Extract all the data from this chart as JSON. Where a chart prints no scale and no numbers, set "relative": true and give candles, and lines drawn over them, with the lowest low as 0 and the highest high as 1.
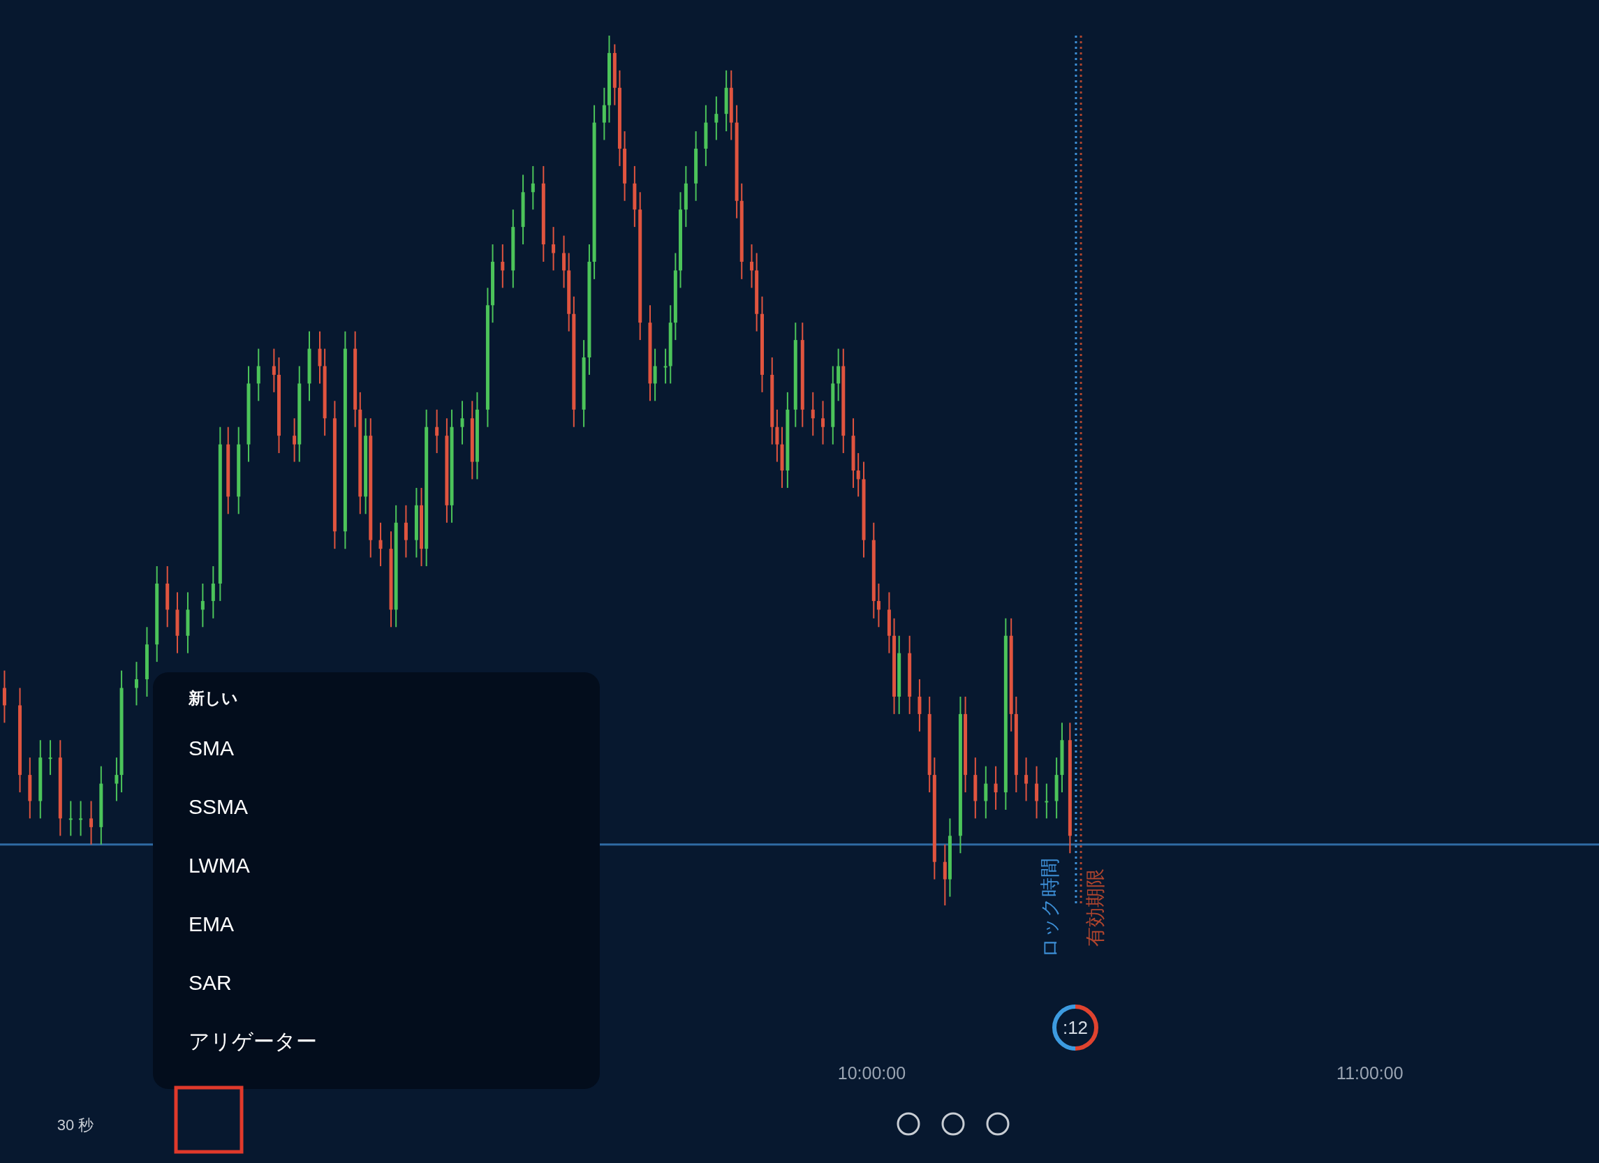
{
  "chart_data": {
    "type": "candlestick",
    "relative": true,
    "x": [
      8.259,
      8.29,
      8.31,
      8.331,
      8.351,
      8.371,
      8.392,
      8.412,
      8.433,
      8.453,
      8.484,
      8.494,
      8.524,
      8.545,
      8.565,
      8.586,
      8.606,
      8.627,
      8.657,
      8.678,
      8.692,
      8.708,
      8.729,
      8.749,
      8.769,
      8.8,
      8.81,
      8.841,
      8.851,
      8.871,
      8.892,
      8.902,
      8.922,
      8.943,
      8.963,
      8.973,
      8.984,
      8.994,
      9.014,
      9.035,
      9.045,
      9.065,
      9.086,
      9.096,
      9.106,
      9.127,
      9.147,
      9.157,
      9.178,
      9.198,
      9.208,
      9.229,
      9.239,
      9.259,
      9.28,
      9.3,
      9.32,
      9.341,
      9.361,
      9.382,
      9.392,
      9.402,
      9.422,
      9.433,
      9.443,
      9.463,
      9.473,
      9.484,
      9.494,
      9.504,
      9.524,
      9.535,
      9.555,
      9.565,
      9.586,
      9.596,
      9.606,
      9.616,
      9.627,
      9.647,
      9.667,
      9.688,
      9.708,
      9.718,
      9.729,
      9.739,
      9.759,
      9.769,
      9.78,
      9.8,
      9.81,
      9.82,
      9.831,
      9.847,
      9.861,
      9.882,
      9.902,
      9.922,
      9.933,
      9.943,
      9.963,
      9.973,
      9.984,
      10.004,
      10.014,
      10.035,
      10.045,
      10.055,
      10.076,
      10.096,
      10.116,
      10.126,
      10.147,
      10.157,
      10.178,
      10.188,
      10.208,
      10.229,
      10.249,
      10.269,
      10.28,
      10.29,
      10.31,
      10.331,
      10.351,
      10.371,
      10.382,
      10.398
    ],
    "ohlc": [
      [
        0.25,
        0.27,
        0.21,
        0.23
      ],
      [
        0.23,
        0.25,
        0.13,
        0.15
      ],
      [
        0.15,
        0.17,
        0.1,
        0.12
      ],
      [
        0.12,
        0.19,
        0.1,
        0.17
      ],
      [
        0.17,
        0.19,
        0.15,
        0.17
      ],
      [
        0.17,
        0.19,
        0.08,
        0.1
      ],
      [
        0.1,
        0.12,
        0.08,
        0.1
      ],
      [
        0.1,
        0.12,
        0.08,
        0.1
      ],
      [
        0.1,
        0.12,
        0.07,
        0.09
      ],
      [
        0.09,
        0.16,
        0.07,
        0.14
      ],
      [
        0.14,
        0.17,
        0.12,
        0.15
      ],
      [
        0.15,
        0.27,
        0.13,
        0.25
      ],
      [
        0.25,
        0.28,
        0.23,
        0.26
      ],
      [
        0.26,
        0.32,
        0.24,
        0.3
      ],
      [
        0.3,
        0.39,
        0.28,
        0.37
      ],
      [
        0.37,
        0.39,
        0.32,
        0.34
      ],
      [
        0.34,
        0.36,
        0.29,
        0.31
      ],
      [
        0.31,
        0.36,
        0.29,
        0.34
      ],
      [
        0.34,
        0.37,
        0.32,
        0.35
      ],
      [
        0.35,
        0.39,
        0.33,
        0.37
      ],
      [
        0.37,
        0.55,
        0.35,
        0.53
      ],
      [
        0.53,
        0.55,
        0.45,
        0.47
      ],
      [
        0.47,
        0.55,
        0.45,
        0.53
      ],
      [
        0.53,
        0.62,
        0.51,
        0.6
      ],
      [
        0.6,
        0.64,
        0.58,
        0.62
      ],
      [
        0.62,
        0.64,
        0.59,
        0.61
      ],
      [
        0.61,
        0.63,
        0.52,
        0.54
      ],
      [
        0.54,
        0.56,
        0.51,
        0.53
      ],
      [
        0.53,
        0.62,
        0.51,
        0.6
      ],
      [
        0.6,
        0.66,
        0.58,
        0.64
      ],
      [
        0.64,
        0.66,
        0.6,
        0.62
      ],
      [
        0.62,
        0.64,
        0.54,
        0.56
      ],
      [
        0.56,
        0.58,
        0.41,
        0.43
      ],
      [
        0.43,
        0.66,
        0.41,
        0.64
      ],
      [
        0.64,
        0.66,
        0.55,
        0.57
      ],
      [
        0.57,
        0.59,
        0.45,
        0.47
      ],
      [
        0.47,
        0.56,
        0.45,
        0.54
      ],
      [
        0.54,
        0.56,
        0.4,
        0.42
      ],
      [
        0.42,
        0.44,
        0.39,
        0.41
      ],
      [
        0.41,
        0.43,
        0.32,
        0.34
      ],
      [
        0.34,
        0.46,
        0.32,
        0.44
      ],
      [
        0.44,
        0.46,
        0.4,
        0.42
      ],
      [
        0.42,
        0.48,
        0.4,
        0.46
      ],
      [
        0.46,
        0.48,
        0.39,
        0.41
      ],
      [
        0.41,
        0.57,
        0.39,
        0.55
      ],
      [
        0.55,
        0.57,
        0.52,
        0.54
      ],
      [
        0.54,
        0.56,
        0.44,
        0.46
      ],
      [
        0.46,
        0.57,
        0.44,
        0.55
      ],
      [
        0.55,
        0.58,
        0.53,
        0.56
      ],
      [
        0.56,
        0.58,
        0.49,
        0.51
      ],
      [
        0.51,
        0.59,
        0.49,
        0.57
      ],
      [
        0.57,
        0.71,
        0.55,
        0.69
      ],
      [
        0.69,
        0.76,
        0.67,
        0.74
      ],
      [
        0.74,
        0.76,
        0.71,
        0.73
      ],
      [
        0.73,
        0.8,
        0.71,
        0.78
      ],
      [
        0.78,
        0.84,
        0.76,
        0.82
      ],
      [
        0.82,
        0.85,
        0.8,
        0.83
      ],
      [
        0.83,
        0.85,
        0.74,
        0.76
      ],
      [
        0.76,
        0.78,
        0.73,
        0.75
      ],
      [
        0.75,
        0.77,
        0.71,
        0.73
      ],
      [
        0.73,
        0.75,
        0.66,
        0.68
      ],
      [
        0.68,
        0.7,
        0.55,
        0.57
      ],
      [
        0.57,
        0.65,
        0.55,
        0.63
      ],
      [
        0.63,
        0.76,
        0.61,
        0.74
      ],
      [
        0.74,
        0.92,
        0.72,
        0.9
      ],
      [
        0.9,
        0.94,
        0.88,
        0.92
      ],
      [
        0.92,
        1.0,
        0.9,
        0.98
      ],
      [
        0.98,
        0.99,
        0.92,
        0.94
      ],
      [
        0.94,
        0.96,
        0.85,
        0.87
      ],
      [
        0.87,
        0.89,
        0.81,
        0.83
      ],
      [
        0.83,
        0.85,
        0.78,
        0.8
      ],
      [
        0.8,
        0.82,
        0.65,
        0.67
      ],
      [
        0.67,
        0.69,
        0.58,
        0.6
      ],
      [
        0.6,
        0.64,
        0.58,
        0.62
      ],
      [
        0.62,
        0.64,
        0.6,
        0.62
      ],
      [
        0.62,
        0.69,
        0.6,
        0.67
      ],
      [
        0.67,
        0.75,
        0.65,
        0.73
      ],
      [
        0.73,
        0.82,
        0.71,
        0.8
      ],
      [
        0.8,
        0.85,
        0.78,
        0.83
      ],
      [
        0.83,
        0.89,
        0.81,
        0.87
      ],
      [
        0.87,
        0.92,
        0.85,
        0.9
      ],
      [
        0.9,
        0.93,
        0.88,
        0.91
      ],
      [
        0.91,
        0.96,
        0.89,
        0.94
      ],
      [
        0.94,
        0.96,
        0.88,
        0.9
      ],
      [
        0.9,
        0.92,
        0.79,
        0.81
      ],
      [
        0.81,
        0.83,
        0.72,
        0.74
      ],
      [
        0.74,
        0.76,
        0.71,
        0.73
      ],
      [
        0.73,
        0.75,
        0.66,
        0.68
      ],
      [
        0.68,
        0.7,
        0.59,
        0.61
      ],
      [
        0.61,
        0.63,
        0.53,
        0.55
      ],
      [
        0.55,
        0.57,
        0.51,
        0.53
      ],
      [
        0.53,
        0.55,
        0.48,
        0.5
      ],
      [
        0.5,
        0.59,
        0.48,
        0.57
      ],
      [
        0.57,
        0.67,
        0.55,
        0.65
      ],
      [
        0.65,
        0.67,
        0.55,
        0.57
      ],
      [
        0.57,
        0.59,
        0.54,
        0.56
      ],
      [
        0.56,
        0.58,
        0.53,
        0.55
      ],
      [
        0.55,
        0.62,
        0.53,
        0.6
      ],
      [
        0.6,
        0.64,
        0.58,
        0.62
      ],
      [
        0.62,
        0.64,
        0.52,
        0.54
      ],
      [
        0.54,
        0.56,
        0.48,
        0.5
      ],
      [
        0.5,
        0.52,
        0.47,
        0.49
      ],
      [
        0.49,
        0.51,
        0.4,
        0.42
      ],
      [
        0.42,
        0.44,
        0.33,
        0.35
      ],
      [
        0.35,
        0.37,
        0.32,
        0.34
      ],
      [
        0.34,
        0.36,
        0.29,
        0.31
      ],
      [
        0.31,
        0.33,
        0.22,
        0.24
      ],
      [
        0.24,
        0.31,
        0.22,
        0.29
      ],
      [
        0.29,
        0.31,
        0.22,
        0.24
      ],
      [
        0.24,
        0.26,
        0.2,
        0.22
      ],
      [
        0.22,
        0.24,
        0.13,
        0.15
      ],
      [
        0.15,
        0.17,
        0.03,
        0.05
      ],
      [
        0.05,
        0.07,
        0.0,
        0.03
      ],
      [
        0.03,
        0.1,
        0.01,
        0.08
      ],
      [
        0.08,
        0.24,
        0.06,
        0.22
      ],
      [
        0.22,
        0.24,
        0.13,
        0.15
      ],
      [
        0.15,
        0.17,
        0.1,
        0.12
      ],
      [
        0.12,
        0.16,
        0.1,
        0.14
      ],
      [
        0.14,
        0.16,
        0.11,
        0.13
      ],
      [
        0.13,
        0.33,
        0.11,
        0.31
      ],
      [
        0.31,
        0.33,
        0.2,
        0.22
      ],
      [
        0.22,
        0.24,
        0.13,
        0.15
      ],
      [
        0.15,
        0.17,
        0.12,
        0.14
      ],
      [
        0.14,
        0.16,
        0.1,
        0.12
      ],
      [
        0.12,
        0.14,
        0.1,
        0.12
      ],
      [
        0.12,
        0.17,
        0.1,
        0.15
      ],
      [
        0.15,
        0.21,
        0.13,
        0.19
      ],
      [
        0.19,
        0.21,
        0.06,
        0.08
      ]
    ],
    "colors": [
      "#e0543f",
      "#e0543f",
      "#e0543f",
      "#4cc45a",
      "#4cc45a",
      "#e0543f",
      "#4cc45a",
      "#4cc45a",
      "#e0543f",
      "#4cc45a",
      "#4cc45a",
      "#4cc45a",
      "#4cc45a",
      "#4cc45a",
      "#4cc45a",
      "#e0543f",
      "#e0543f",
      "#4cc45a",
      "#4cc45a",
      "#4cc45a",
      "#4cc45a",
      "#e0543f",
      "#4cc45a",
      "#4cc45a",
      "#4cc45a",
      "#e0543f",
      "#e0543f",
      "#e0543f",
      "#4cc45a",
      "#4cc45a",
      "#e0543f",
      "#e0543f",
      "#e0543f",
      "#4cc45a",
      "#e0543f",
      "#e0543f",
      "#4cc45a",
      "#e0543f",
      "#e0543f",
      "#e0543f",
      "#4cc45a",
      "#e0543f",
      "#4cc45a",
      "#e0543f",
      "#4cc45a",
      "#e0543f",
      "#e0543f",
      "#4cc45a",
      "#4cc45a",
      "#e0543f",
      "#4cc45a",
      "#4cc45a",
      "#4cc45a",
      "#e0543f",
      "#4cc45a",
      "#4cc45a",
      "#4cc45a",
      "#e0543f",
      "#e0543f",
      "#e0543f",
      "#e0543f",
      "#e0543f",
      "#4cc45a",
      "#4cc45a",
      "#4cc45a",
      "#4cc45a",
      "#4cc45a",
      "#e0543f",
      "#e0543f",
      "#e0543f",
      "#e0543f",
      "#e0543f",
      "#e0543f",
      "#4cc45a",
      "#4cc45a",
      "#4cc45a",
      "#4cc45a",
      "#4cc45a",
      "#4cc45a",
      "#4cc45a",
      "#4cc45a",
      "#4cc45a",
      "#4cc45a",
      "#e0543f",
      "#e0543f",
      "#e0543f",
      "#e0543f",
      "#e0543f",
      "#e0543f",
      "#e0543f",
      "#e0543f",
      "#e0543f",
      "#4cc45a",
      "#4cc45a",
      "#e0543f",
      "#e0543f",
      "#e0543f",
      "#4cc45a",
      "#4cc45a",
      "#e0543f",
      "#e0543f",
      "#e0543f",
      "#e0543f",
      "#e0543f",
      "#e0543f",
      "#e0543f",
      "#e0543f",
      "#4cc45a",
      "#e0543f",
      "#e0543f",
      "#e0543f",
      "#e0543f",
      "#e0543f",
      "#4cc45a",
      "#4cc45a",
      "#e0543f",
      "#e0543f",
      "#4cc45a",
      "#e0543f",
      "#4cc45a",
      "#e0543f",
      "#e0543f",
      "#e0543f",
      "#e0543f",
      "#4cc45a",
      "#4cc45a",
      "#4cc45a",
      "#e0543f"
    ],
    "xlim": [
      8.25,
      11.46
    ],
    "xticks": [
      {
        "value": 10,
        "label": "10:00:00"
      },
      {
        "value": 11,
        "label": "11:00:00"
      }
    ],
    "ref_lines": [
      {
        "axis": "y",
        "value": 0.07,
        "color": "#2f6aa3",
        "line_style": "solid"
      },
      {
        "axis": "x",
        "value": 10.41,
        "label": "ロック時間",
        "color": "#3d8fd6",
        "line_style": "dotted"
      },
      {
        "axis": "x",
        "value": 10.42,
        "label": "有効期限",
        "color": "#b0452e",
        "line_style": "dotted"
      }
    ],
    "annotations": [
      "新しい",
      "SMA",
      "SSMA",
      "LWMA",
      "EMA",
      "SAR",
      "アリゲーター",
      "30 秒",
      ":12"
    ]
  }
}
